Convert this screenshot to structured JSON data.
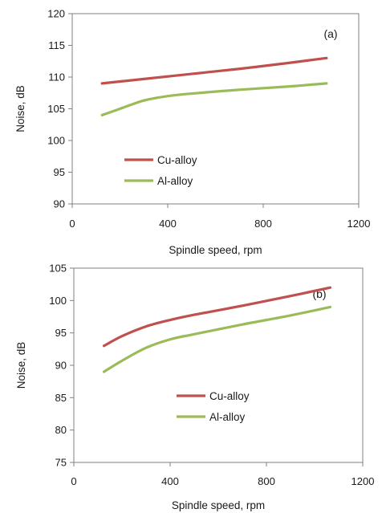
{
  "chart_data": [
    {
      "type": "line",
      "panel_label": "(a)",
      "xlabel": "Spindle speed, rpm",
      "ylabel": "Noise, dB",
      "xlim": [
        0,
        1200
      ],
      "ylim": [
        90,
        120
      ],
      "x_ticks": [
        0,
        400,
        800,
        1200
      ],
      "y_ticks": [
        90,
        95,
        100,
        105,
        110,
        115,
        120
      ],
      "grid": false,
      "legend_position": "lower-left",
      "series": [
        {
          "name": "Cu-alloy",
          "color": "#c0504d",
          "points": [
            [
              125,
              109.0
            ],
            [
              300,
              109.7
            ],
            [
              500,
              110.5
            ],
            [
              700,
              111.3
            ],
            [
              900,
              112.2
            ],
            [
              1065,
              113.0
            ]
          ]
        },
        {
          "name": "Al-alloy",
          "color": "#9bbb59",
          "points": [
            [
              125,
              104.0
            ],
            [
              200,
              105.0
            ],
            [
              300,
              106.3
            ],
            [
              400,
              107.0
            ],
            [
              500,
              107.4
            ],
            [
              700,
              108.0
            ],
            [
              900,
              108.5
            ],
            [
              1065,
              109.0
            ]
          ]
        }
      ]
    },
    {
      "type": "line",
      "panel_label": "(b)",
      "xlabel": "Spindle speed, rpm",
      "ylabel": "Noise, dB",
      "xlim": [
        0,
        1200
      ],
      "ylim": [
        75,
        105
      ],
      "x_ticks": [
        0,
        400,
        800,
        1200
      ],
      "y_ticks": [
        75,
        80,
        85,
        90,
        95,
        100,
        105
      ],
      "grid": false,
      "legend_position": "lower-center",
      "series": [
        {
          "name": "Cu-alloy",
          "color": "#c0504d",
          "points": [
            [
              125,
              93.0
            ],
            [
              200,
              94.5
            ],
            [
              300,
              96.0
            ],
            [
              400,
              97.0
            ],
            [
              500,
              97.8
            ],
            [
              700,
              99.2
            ],
            [
              900,
              100.7
            ],
            [
              1065,
              102.0
            ]
          ]
        },
        {
          "name": "Al-alloy",
          "color": "#9bbb59",
          "points": [
            [
              125,
              89.0
            ],
            [
              200,
              90.7
            ],
            [
              300,
              92.7
            ],
            [
              400,
              94.0
            ],
            [
              500,
              94.8
            ],
            [
              700,
              96.3
            ],
            [
              900,
              97.7
            ],
            [
              1065,
              99.0
            ]
          ]
        }
      ]
    }
  ]
}
